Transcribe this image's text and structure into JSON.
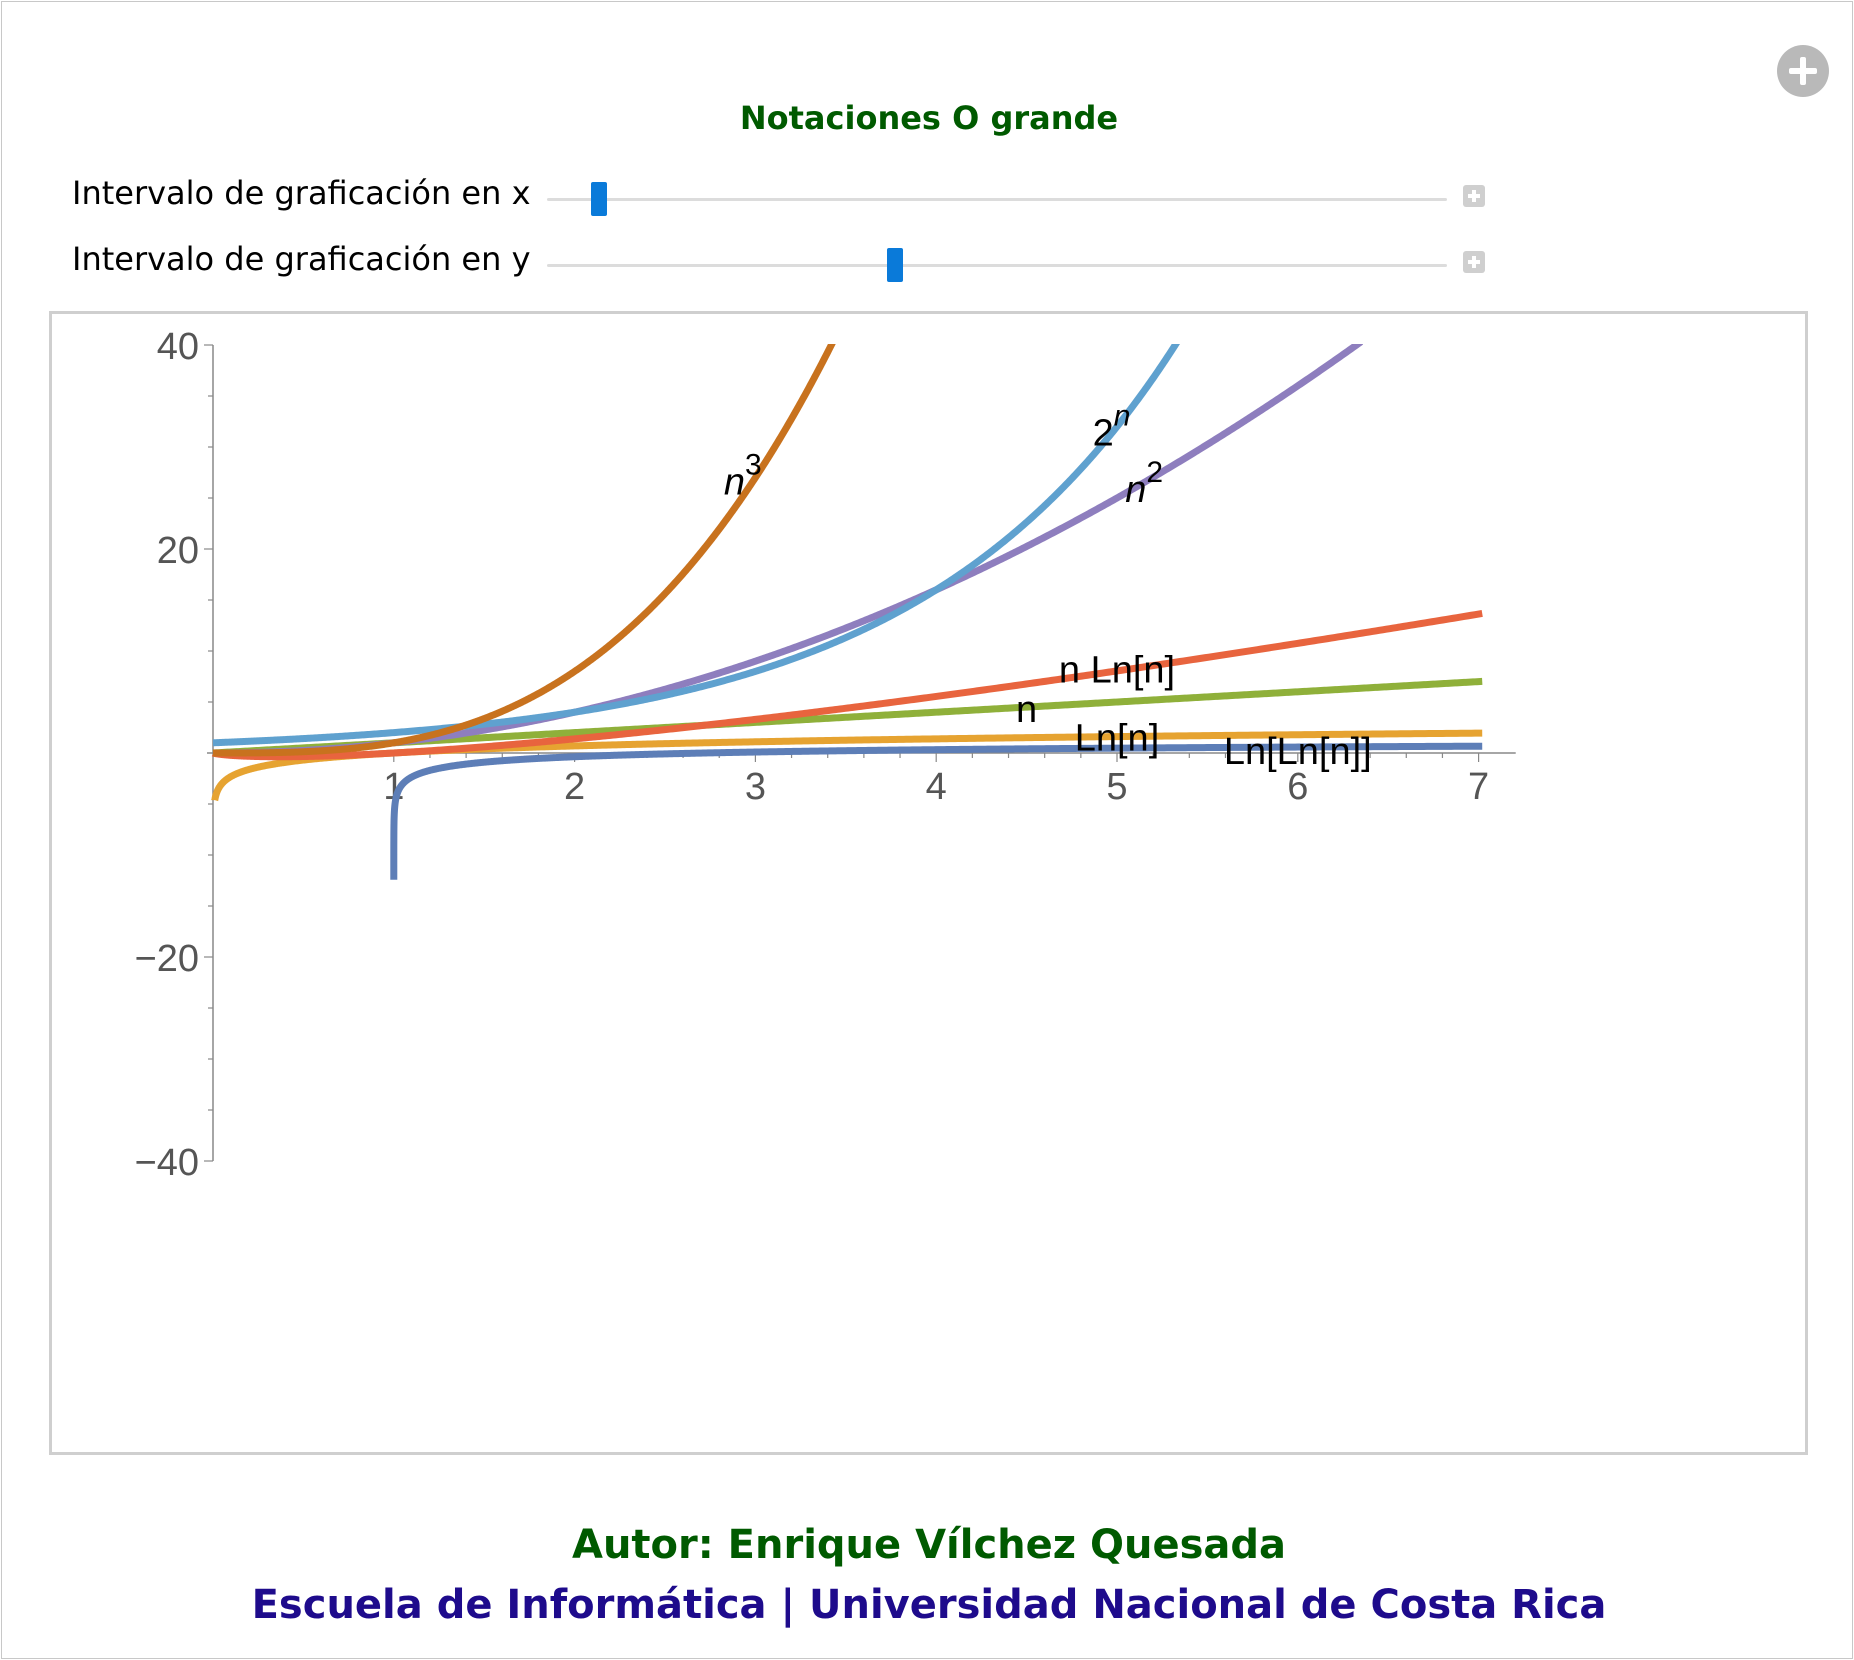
{
  "app": {
    "title": "Notaciones O grande",
    "expand_icon": "plus-circle-icon"
  },
  "controls": [
    {
      "label": "Intervalo de graficación en x",
      "value": 0.05,
      "increment_icon": "plus-square-icon"
    },
    {
      "label": "Intervalo de graficación en y",
      "value": 0.385,
      "increment_icon": "plus-square-icon"
    }
  ],
  "footer": {
    "author": "Autor: Enrique Vílchez Quesada",
    "institution": "Escuela de Informática | Universidad Nacional de Costa Rica"
  },
  "chart_data": {
    "type": "line",
    "title": "",
    "xlabel": "",
    "ylabel": "",
    "xlim": [
      0,
      7.15
    ],
    "ylim": [
      -40,
      40
    ],
    "x_ticks": [
      1,
      2,
      3,
      4,
      5,
      6,
      7
    ],
    "y_ticks": [
      -40,
      -20,
      20,
      40
    ],
    "grid": false,
    "series": [
      {
        "name": "n^3",
        "label_base": "n",
        "label_sup": "3",
        "italic": true,
        "color": "#c8721e",
        "func": "cube",
        "x": [
          0.0,
          3.45
        ],
        "label_at": [
          2.93,
          26.5
        ]
      },
      {
        "name": "2^n",
        "label_base": "2",
        "label_sup": "n",
        "italic": false,
        "color": "#5fa1cf",
        "func": "exp2",
        "x": [
          0.0,
          5.35
        ],
        "label_at": [
          4.97,
          31.3
        ]
      },
      {
        "name": "n^2",
        "label_base": "n",
        "label_sup": "2",
        "italic": true,
        "color": "#8e7ebe",
        "func": "square",
        "x": [
          0.0,
          6.35
        ],
        "label_at": [
          5.15,
          25.8
        ]
      },
      {
        "name": "n Ln[n]",
        "label_base": "n Ln[n]",
        "label_sup": "",
        "italic": false,
        "color": "#e8643e",
        "func": "nlogn",
        "x": [
          0.002,
          7.02
        ],
        "label_at": [
          5.0,
          8.1
        ]
      },
      {
        "name": "n",
        "label_base": "n",
        "label_sup": "",
        "italic": false,
        "color": "#8fb03a",
        "func": "linear",
        "x": [
          0.0,
          7.02
        ],
        "label_at": [
          4.5,
          4.2
        ]
      },
      {
        "name": "Ln[n]",
        "label_base": "Ln[n]",
        "label_sup": "",
        "italic": false,
        "color": "#e6a331",
        "func": "log",
        "x": [
          0.0098,
          7.02
        ],
        "label_at": [
          5.0,
          1.4
        ]
      },
      {
        "name": "Ln[Ln[n]]",
        "label_base": "Ln[Ln[n]]",
        "label_sup": "",
        "italic": false,
        "color": "#5d7eb7",
        "func": "loglog",
        "x": [
          1.000004,
          7.02
        ],
        "label_at": [
          6.0,
          0.1
        ]
      }
    ]
  }
}
